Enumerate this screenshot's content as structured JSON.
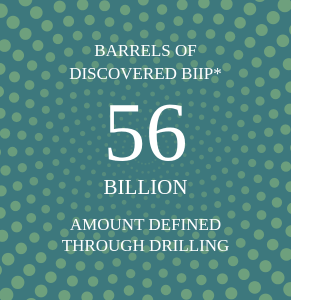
{
  "label_lines": [
    "BARRELS OF",
    "DISCOVERED BIIP*"
  ],
  "value": 56,
  "unit": "BILLION",
  "caption_lines": [
    "AMOUNT DEFINED",
    "THROUGH DRILLING"
  ]
}
